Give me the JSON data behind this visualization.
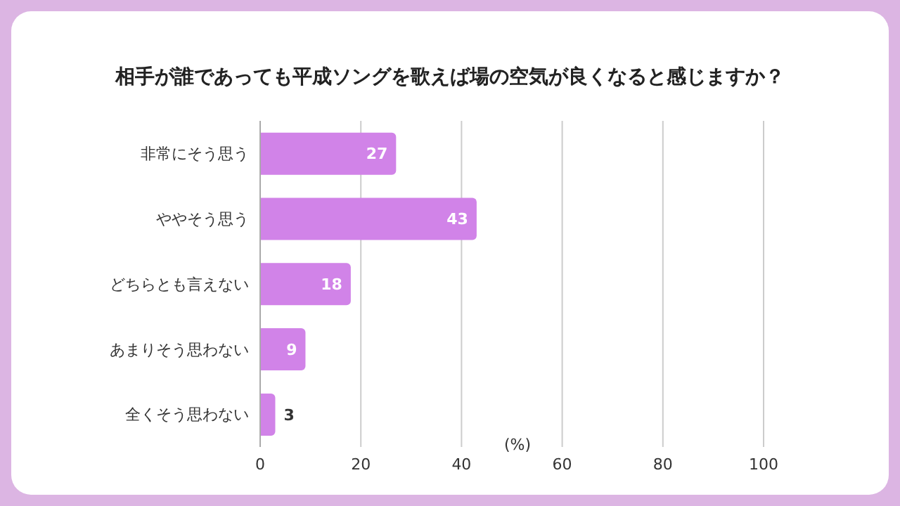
{
  "chart_data": {
    "type": "bar",
    "orientation": "horizontal",
    "title": "相手が誰であっても平成ソングを歌えば場の空気が良くなると感じますか？",
    "xlabel": "(%)",
    "categories": [
      "非常にそう思う",
      "ややそう思う",
      "どちらとも言えない",
      "あまりそう思わない",
      "全くそう思わない"
    ],
    "values": [
      27,
      43,
      18,
      9,
      3
    ],
    "color": "#d183e8",
    "xlim": [
      0,
      100
    ],
    "xticks": [
      0,
      20,
      40,
      60,
      80,
      100
    ],
    "grid": "x",
    "data_labels": true,
    "legend": false
  }
}
